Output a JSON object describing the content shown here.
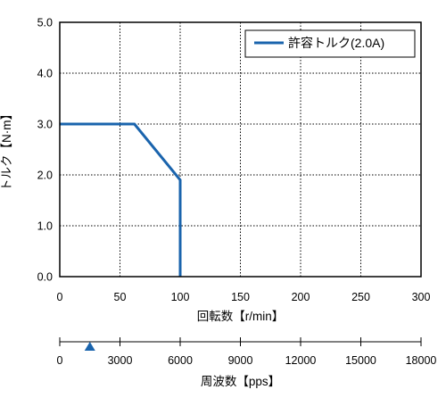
{
  "chart_data": {
    "type": "line",
    "ylabel": "トルク【N·m】",
    "xlabel": "回転数【r/min】",
    "x_ticks": [
      "0",
      "50",
      "100",
      "150",
      "200",
      "250",
      "300"
    ],
    "y_ticks": [
      "0.0",
      "1.0",
      "2.0",
      "3.0",
      "4.0",
      "5.0"
    ],
    "xlim": [
      0,
      300
    ],
    "ylim": [
      0,
      5.0
    ],
    "grid": true,
    "legend_position": "top-right",
    "series": [
      {
        "name": "許容トルク(2.0A)",
        "color": "#1a64ad",
        "points": [
          [
            0,
            3.0
          ],
          [
            62,
            3.0
          ],
          [
            100,
            1.9
          ],
          [
            100,
            0.0
          ]
        ]
      }
    ],
    "secondary_axis": {
      "xlabel": "周波数【pps】",
      "ticks": [
        "0",
        "3000",
        "6000",
        "9000",
        "12000",
        "15000",
        "18000"
      ],
      "range": [
        0,
        18000
      ],
      "marker": {
        "value": 1500,
        "color": "#1a64ad",
        "shape": "triangle"
      }
    }
  }
}
